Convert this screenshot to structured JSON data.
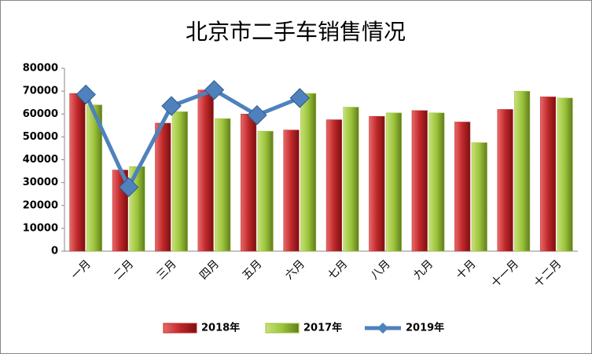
{
  "chart_data": {
    "type": "bar",
    "title": "北京市二手车销售情况",
    "categories": [
      "一月",
      "二月",
      "三月",
      "四月",
      "五月",
      "六月",
      "七月",
      "八月",
      "九月",
      "十月",
      "十一月",
      "十二月"
    ],
    "series": [
      {
        "name": "2018年",
        "type": "bar",
        "color": "#c0282a",
        "values": [
          69000,
          35500,
          56000,
          70500,
          60000,
          53000,
          57500,
          59000,
          61500,
          56500,
          62000,
          67500
        ]
      },
      {
        "name": "2017年",
        "type": "bar",
        "color": "#9bc43a",
        "values": [
          64000,
          37000,
          61000,
          58000,
          52500,
          69000,
          63000,
          60500,
          60500,
          47500,
          70000,
          67000
        ]
      },
      {
        "name": "2019年",
        "type": "line",
        "color": "#4f81bd",
        "values": [
          68500,
          28000,
          63500,
          70500,
          59500,
          67000,
          null,
          null,
          null,
          null,
          null,
          null
        ]
      }
    ],
    "ylim": [
      0,
      80000
    ],
    "yticks": [
      0,
      10000,
      20000,
      30000,
      40000,
      50000,
      60000,
      70000,
      80000
    ],
    "grid": false,
    "legend": "bottom"
  }
}
